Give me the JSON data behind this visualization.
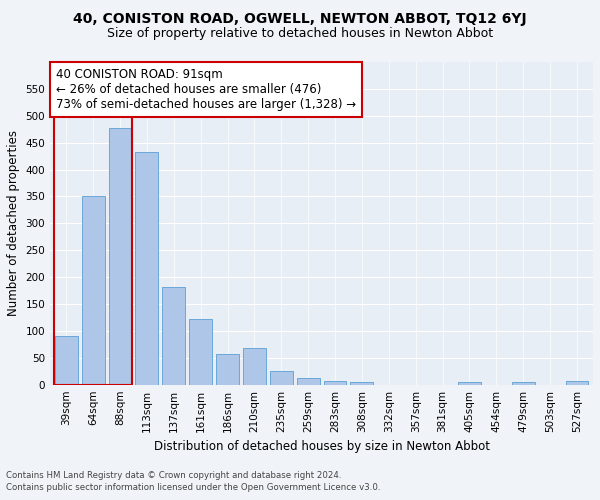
{
  "title": "40, CONISTON ROAD, OGWELL, NEWTON ABBOT, TQ12 6YJ",
  "subtitle": "Size of property relative to detached houses in Newton Abbot",
  "xlabel": "Distribution of detached houses by size in Newton Abbot",
  "ylabel": "Number of detached properties",
  "footnote1": "Contains HM Land Registry data © Crown copyright and database right 2024.",
  "footnote2": "Contains public sector information licensed under the Open Government Licence v3.0.",
  "categories": [
    "39sqm",
    "64sqm",
    "88sqm",
    "113sqm",
    "137sqm",
    "161sqm",
    "186sqm",
    "210sqm",
    "235sqm",
    "259sqm",
    "283sqm",
    "308sqm",
    "332sqm",
    "357sqm",
    "381sqm",
    "405sqm",
    "454sqm",
    "479sqm",
    "503sqm",
    "527sqm"
  ],
  "values": [
    90,
    350,
    478,
    432,
    182,
    123,
    57,
    68,
    25,
    12,
    7,
    5,
    0,
    0,
    0,
    5,
    0,
    5,
    0,
    7
  ],
  "bar_color": "#aec6e8",
  "bar_edge_color": "#5a9fd4",
  "highlight_bar_index": 2,
  "highlight_color": "#cc0000",
  "annotation_line1": "40 CONISTON ROAD: 91sqm",
  "annotation_line2": "← 26% of detached houses are smaller (476)",
  "annotation_line3": "73% of semi-detached houses are larger (1,328) →",
  "annotation_box_color": "#ffffff",
  "annotation_box_edge_color": "#cc0000",
  "ylim": [
    0,
    600
  ],
  "yticks": [
    0,
    50,
    100,
    150,
    200,
    250,
    300,
    350,
    400,
    450,
    500,
    550
  ],
  "bg_color": "#e8eef5",
  "fig_bg_color": "#f0f4f8",
  "title_fontsize": 10,
  "subtitle_fontsize": 9,
  "axis_label_fontsize": 8.5,
  "tick_fontsize": 7.5,
  "annotation_fontsize": 8.5
}
